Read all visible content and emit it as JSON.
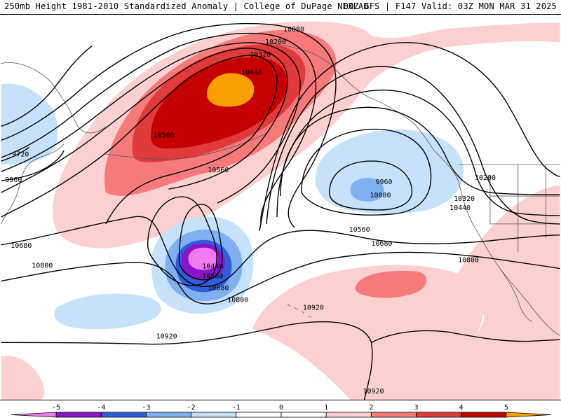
{
  "header": {
    "left_title": "250mb Height 1981-2010 Standardized Anomaly | College of DuPage NEXLAB",
    "right_title": "00Z GFS | F147 Valid: 03Z MON MAR 31 2025"
  },
  "colors": {
    "pos1": "#fcd0d0",
    "pos2": "#f77a7a",
    "pos3": "#e03a3a",
    "pos4": "#c40000",
    "pos5": "#f9a000",
    "neg1": "#c6e2fb",
    "neg2": "#7fb0f2",
    "neg3": "#2e5fd9",
    "neg4": "#8a14c9",
    "neg5": "#f07af0",
    "contour": "#000000",
    "coast": "#555555"
  },
  "contour_labels": {
    "l10080_top": "10080",
    "l10200_top": "10200",
    "l10320_top": "10320",
    "l10440_top": "10440",
    "l10560_left": "10560",
    "l10560_mid": "10560",
    "l9720": "9720",
    "l9960_left": "9960",
    "l10680_left": "10680",
    "l10800_left": "10800",
    "l10440_low": "10440",
    "l10560_low": "10560",
    "l10680_low": "10680",
    "l10800_low": "10800",
    "l9960_ne": "9960",
    "l10080_ne": "10080",
    "l10200_east": "10200",
    "l10320_east": "10320",
    "l10440_east": "10440",
    "l10560_east": "10560",
    "l10680_east": "10680",
    "l10800_east": "10800",
    "l10920_mid": "10920",
    "l10920_south": "10920",
    "l10920_se": "10920"
  },
  "legend": {
    "ticks": [
      "-5",
      "-4",
      "-3",
      "-2",
      "-1",
      "0",
      "1",
      "2",
      "3",
      "4",
      "5"
    ],
    "bins": [
      "#f07af0",
      "#8a14c9",
      "#2e5fd9",
      "#7fb0f2",
      "#c6e2fb",
      "#ffffff",
      "#ffffff",
      "#fcd0d0",
      "#f77a7a",
      "#e03a3a",
      "#c40000",
      "#f9a000"
    ]
  }
}
